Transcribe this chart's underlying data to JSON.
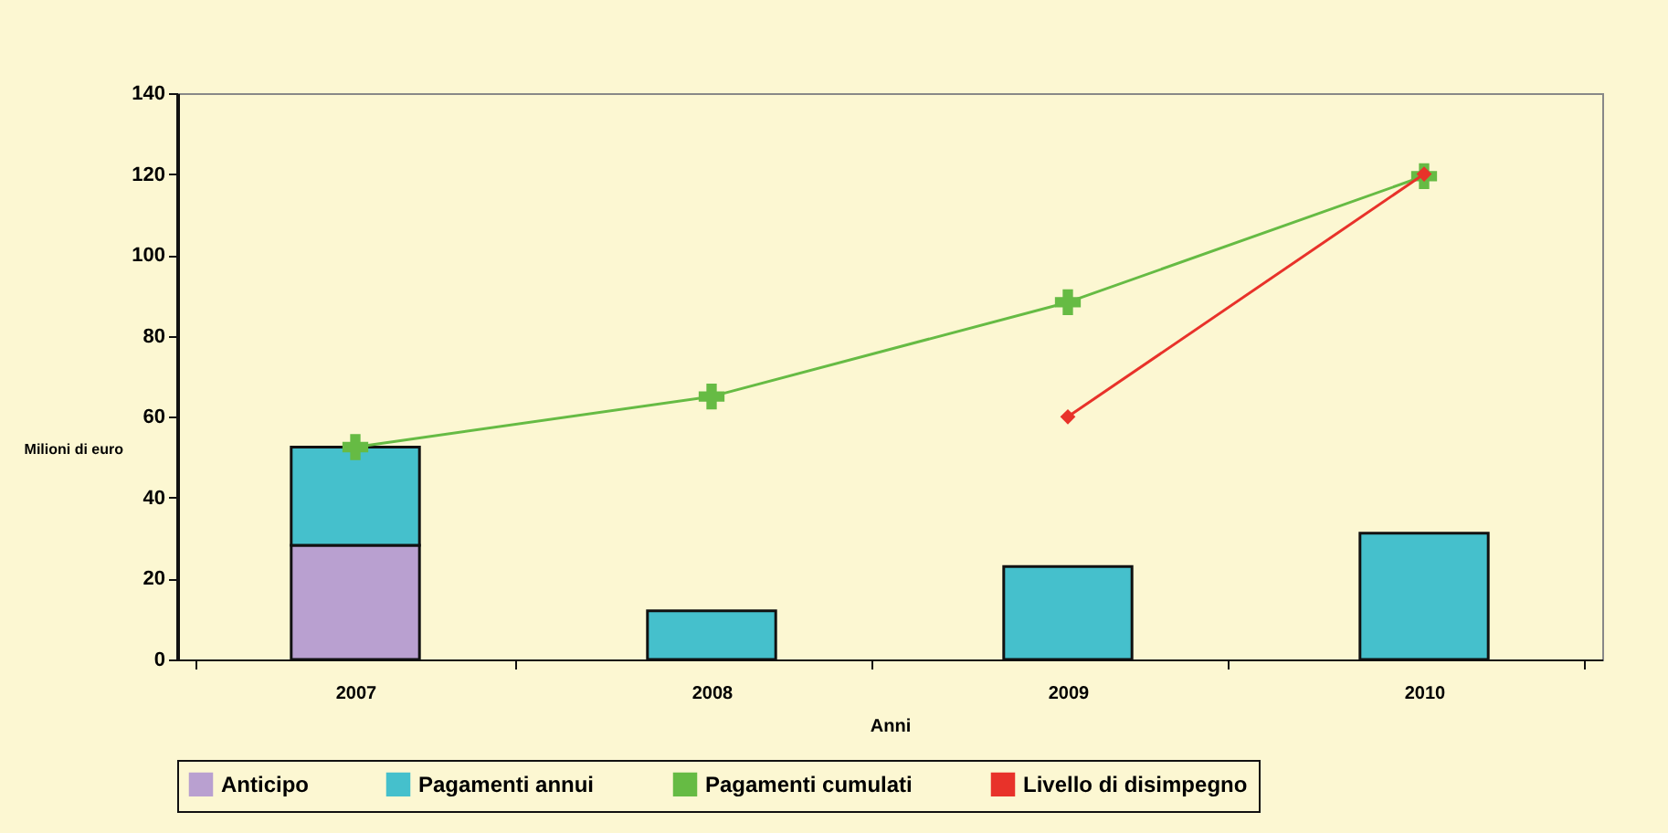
{
  "chart_data": {
    "type": "bar",
    "stacked": true,
    "xlabel": "Anni",
    "ylabel": "Milioni di euro",
    "categories": [
      "2007",
      "2008",
      "2009",
      "2010"
    ],
    "series": [
      {
        "name": "Anticipo",
        "color": "#b9a0d0",
        "values": [
          28.2,
          null,
          null,
          null
        ]
      },
      {
        "name": "Pagamenti annui",
        "color": "#45c0cc",
        "values": [
          24.3,
          12,
          23,
          31.2
        ]
      },
      {
        "name": "Pagamenti cumulati",
        "type": "line",
        "marker": "cross",
        "color": "#66bb44",
        "values": [
          52.5,
          65,
          88.3,
          119.5
        ]
      },
      {
        "name": "Livello di disimpegno",
        "type": "line",
        "marker": "diamond",
        "color": "#e8322a",
        "values": [
          null,
          null,
          60,
          120
        ]
      }
    ],
    "ylim": [
      0,
      140
    ],
    "yticks": [
      0,
      20,
      40,
      60,
      80,
      100,
      120,
      140
    ],
    "grid": false,
    "legend": "bottom"
  }
}
